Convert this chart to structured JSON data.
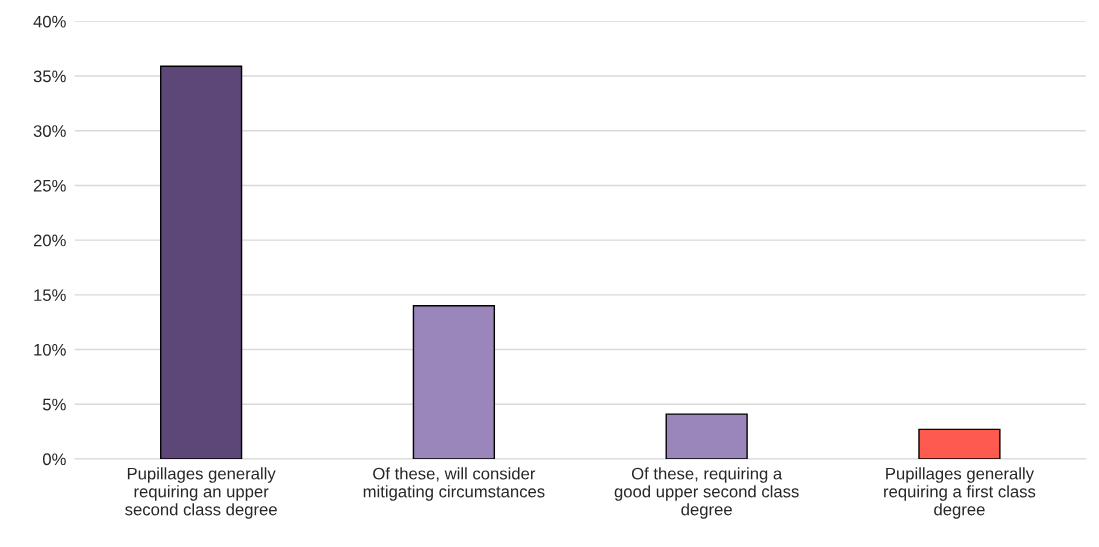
{
  "chart_data": {
    "type": "bar",
    "categories": [
      "Pupillages generally requiring an upper second class degree",
      "Of these, will consider mitigating circumstances",
      "Of these, requiring a good upper second class degree",
      "Pupillages generally requiring a first class degree"
    ],
    "values": [
      35.9,
      14,
      4.1,
      2.7
    ],
    "colors": [
      "#5c4778",
      "#9b86bb",
      "#9b86bb",
      "#ff5a4f"
    ],
    "ylim": [
      0,
      40
    ],
    "yticks": [
      {
        "value": 0,
        "label": "0%"
      },
      {
        "value": 5,
        "label": "5%"
      },
      {
        "value": 10,
        "label": "10%"
      },
      {
        "value": 15,
        "label": "15%"
      },
      {
        "value": 20,
        "label": "20%"
      },
      {
        "value": 25,
        "label": "25%"
      },
      {
        "value": 30,
        "label": "30%"
      },
      {
        "value": 35,
        "label": "35%"
      },
      {
        "value": 40,
        "label": "40%"
      }
    ],
    "grid": "y",
    "legend": false
  }
}
